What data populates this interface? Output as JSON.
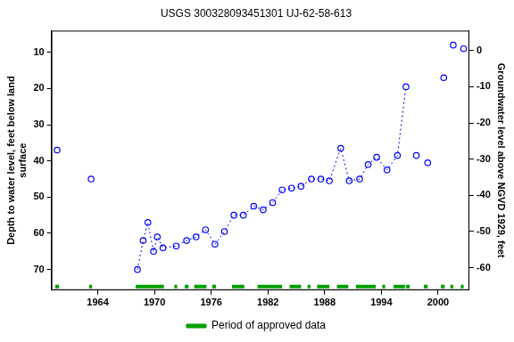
{
  "chart_data": {
    "type": "scatter",
    "title": "USGS 300328093451301 UJ-62-58-613",
    "y_label": [
      "Depth to water level, feet below land",
      "surface"
    ],
    "y2_label": "Groundwater level above NGVD 1929, feet",
    "x": [
      1959.7,
      1963.3,
      1968.2,
      1968.8,
      1969.3,
      1969.9,
      1970.3,
      1970.9,
      1972.3,
      1973.4,
      1974.4,
      1975.4,
      1976.4,
      1977.4,
      1978.4,
      1979.4,
      1980.5,
      1981.5,
      1982.5,
      1983.5,
      1984.5,
      1985.5,
      1986.6,
      1987.6,
      1988.5,
      1989.7,
      1990.6,
      1991.7,
      1992.6,
      1993.5,
      1994.6,
      1995.7,
      1996.6,
      1997.7,
      1998.9,
      2000.6,
      2001.6,
      2002.7
    ],
    "series": [
      {
        "color": "#0000ff",
        "marker": "circle",
        "line_style": "dotted",
        "values": [
          null,
          null,
          70,
          62,
          57,
          65,
          61,
          64,
          63.5,
          62,
          61,
          59,
          63,
          59.5,
          55,
          55,
          52.5,
          53.5,
          51.5,
          48,
          47.5,
          47,
          45,
          45,
          45.5,
          36.5,
          45.5,
          45,
          41,
          39,
          42.5,
          38.5,
          19.5,
          null,
          null,
          null,
          null,
          null
        ]
      },
      {
        "color": "#0000ff",
        "marker": "circle",
        "line_style": "none",
        "values": [
          37,
          45,
          null,
          null,
          null,
          null,
          null,
          null,
          null,
          null,
          null,
          null,
          null,
          null,
          null,
          null,
          null,
          null,
          null,
          null,
          null,
          null,
          null,
          null,
          null,
          null,
          null,
          null,
          null,
          null,
          null,
          null,
          null,
          38.5,
          40.5,
          17,
          8,
          9
        ]
      },
      {
        "name": "Period of approved data",
        "color": "#00a000",
        "type": "period",
        "periods": [
          [
            1959.5,
            1959.9
          ],
          [
            1963.1,
            1963.4
          ],
          [
            1968.0,
            1971.0
          ],
          [
            1972.1,
            1972.4
          ],
          [
            1973.2,
            1973.6
          ],
          [
            1974.2,
            1975.5
          ],
          [
            1976.1,
            1976.5
          ],
          [
            1978.2,
            1979.5
          ],
          [
            1980.9,
            1983.5
          ],
          [
            1984.3,
            1985.5
          ],
          [
            1986.2,
            1986.5
          ],
          [
            1987.2,
            1988.5
          ],
          [
            1989.3,
            1990.5
          ],
          [
            1991.3,
            1993.4
          ],
          [
            1994.1,
            1994.4
          ],
          [
            1995.3,
            1996.5
          ],
          [
            1996.6,
            1997.0
          ],
          [
            1998.5,
            1998.9
          ],
          [
            2000.3,
            2000.7
          ],
          [
            2001.3,
            2001.6
          ],
          [
            2002.4,
            2002.7
          ]
        ]
      }
    ],
    "xlim": [
      1959.1,
      2003.3
    ],
    "xticks": [
      1964,
      1970,
      1976,
      1982,
      1988,
      1994,
      2000
    ],
    "ylim": [
      75.7,
      4
    ],
    "yticks": [
      10,
      20,
      30,
      40,
      50,
      60,
      70
    ],
    "y2lim": [
      -66.2,
      5.5
    ],
    "y2ticks": [
      0,
      -10,
      -20,
      -30,
      -40,
      -50,
      -60
    ],
    "grid": false,
    "legend": "bottom"
  }
}
